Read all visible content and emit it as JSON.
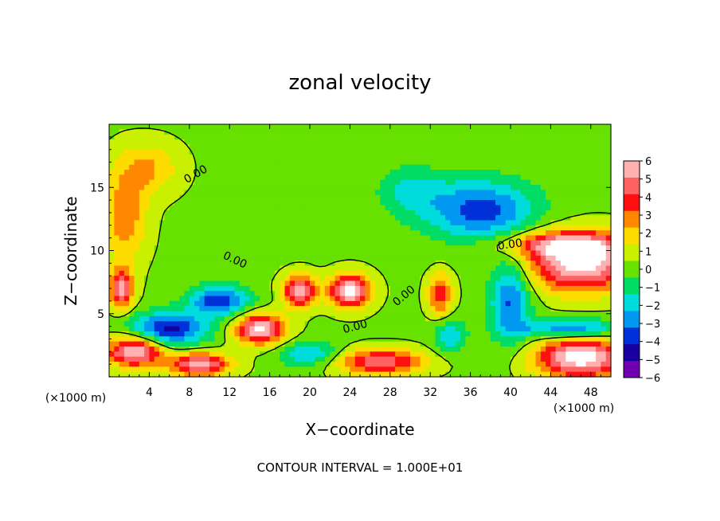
{
  "chart_data": {
    "type": "heatmap",
    "title": "zonal velocity",
    "xlabel": "X−coordinate",
    "ylabel": "Z−coordinate",
    "x_unit_label": "(×1000 m)",
    "xlim": [
      0,
      50
    ],
    "ylim": [
      0,
      20
    ],
    "x_ticks": [
      4,
      8,
      12,
      16,
      20,
      24,
      28,
      32,
      36,
      40,
      44,
      48
    ],
    "y_ticks": [
      5,
      10,
      15
    ],
    "colorbar": {
      "ticks": [
        6,
        5,
        4,
        3,
        2,
        1,
        0,
        -1,
        -2,
        -3,
        -4,
        -5,
        -6
      ],
      "labels": [
        "6",
        "5",
        "4",
        "3",
        "2",
        "1",
        "0",
        "−1",
        "−2",
        "−3",
        "−4",
        "−5",
        "−6"
      ],
      "colors": [
        "#ffb0b0",
        "#ff6262",
        "#ff1010",
        "#ff8800",
        "#ffdc00",
        "#c8f000",
        "#66e100",
        "#00dc66",
        "#00dcdc",
        "#0098f0",
        "#0030d8",
        "#1800a0",
        "#7000b0"
      ],
      "range": [
        -6,
        6
      ]
    },
    "contour_labels": [
      {
        "text": "0.00",
        "x": 8.8,
        "y": 15.8,
        "rotate": -30
      },
      {
        "text": "0.00",
        "x": 12.4,
        "y": 9.0,
        "rotate": 25
      },
      {
        "text": "0.00",
        "x": 24.6,
        "y": 3.7,
        "rotate": -15
      },
      {
        "text": "0.00",
        "x": 29.6,
        "y": 6.2,
        "rotate": -40
      },
      {
        "text": "0.00",
        "x": 40.0,
        "y": 10.2,
        "rotate": -8
      }
    ],
    "field_blobs": [
      {
        "x": 37.0,
        "y": 13.2,
        "rx": 5.5,
        "ry": 2.4,
        "v": -4.3
      },
      {
        "x": 30.0,
        "y": 14.8,
        "rx": 3.4,
        "ry": 2.0,
        "v": -1.8
      },
      {
        "x": 1.5,
        "y": 12.8,
        "rx": 2.2,
        "ry": 3.5,
        "v": 3.0
      },
      {
        "x": 4.0,
        "y": 16.5,
        "rx": 3.0,
        "ry": 2.0,
        "v": 2.2
      },
      {
        "x": 47.0,
        "y": 9.0,
        "rx": 5.0,
        "ry": 2.2,
        "v": 7.0
      },
      {
        "x": 40.0,
        "y": 6.0,
        "rx": 2.0,
        "ry": 3.2,
        "v": -4.0
      },
      {
        "x": 24.0,
        "y": 6.8,
        "rx": 2.0,
        "ry": 1.3,
        "v": 7.0
      },
      {
        "x": 19.0,
        "y": 6.8,
        "rx": 1.6,
        "ry": 1.2,
        "v": 6.5
      },
      {
        "x": 11.0,
        "y": 6.0,
        "rx": 3.0,
        "ry": 1.2,
        "v": -4.6
      },
      {
        "x": 6.0,
        "y": 3.8,
        "rx": 3.8,
        "ry": 1.3,
        "v": -5.2
      },
      {
        "x": 15.0,
        "y": 3.8,
        "rx": 2.5,
        "ry": 1.2,
        "v": 6.5
      },
      {
        "x": 2.5,
        "y": 2.0,
        "rx": 2.8,
        "ry": 1.2,
        "v": 6.5
      },
      {
        "x": 34.0,
        "y": 3.2,
        "rx": 1.6,
        "ry": 1.4,
        "v": -2.5
      },
      {
        "x": 33.0,
        "y": 6.5,
        "rx": 1.2,
        "ry": 1.6,
        "v": 4.0
      },
      {
        "x": 47.0,
        "y": 1.5,
        "rx": 4.5,
        "ry": 1.6,
        "v": 7.0
      },
      {
        "x": 46.0,
        "y": 3.8,
        "rx": 5.0,
        "ry": 0.8,
        "v": -4.0
      },
      {
        "x": 27.0,
        "y": 1.2,
        "rx": 4.5,
        "ry": 1.0,
        "v": 5.0
      },
      {
        "x": 20.0,
        "y": 1.8,
        "rx": 3.0,
        "ry": 1.0,
        "v": -3.0
      },
      {
        "x": 9.0,
        "y": 1.0,
        "rx": 3.0,
        "ry": 0.9,
        "v": 6.0
      },
      {
        "x": 45.0,
        "y": 10.5,
        "rx": 6.0,
        "ry": 1.0,
        "v": 4.0
      },
      {
        "x": 1.2,
        "y": 7.0,
        "rx": 1.2,
        "ry": 1.6,
        "v": 5.5
      }
    ]
  },
  "footer": {
    "interval_text": "CONTOUR INTERVAL = 1.000E+01"
  }
}
